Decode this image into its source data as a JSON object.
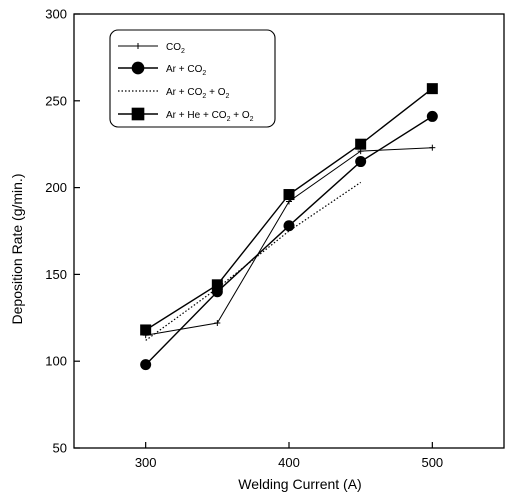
{
  "chart_data": {
    "type": "line",
    "title": "",
    "xlabel": "Welding Current (A)",
    "ylabel": "Deposition Rate  (g/min.)",
    "xlim": [
      250,
      550
    ],
    "ylim": [
      50,
      300
    ],
    "xticks": [
      300,
      400,
      500
    ],
    "yticks": [
      50,
      100,
      150,
      200,
      250,
      300
    ],
    "grid": false,
    "legend_position": "top-left",
    "series": [
      {
        "name": "CO2",
        "legend_parts": [
          {
            "text": "CO",
            "sub": false
          },
          {
            "text": "2",
            "sub": true
          }
        ],
        "marker": "plus",
        "dash": "solid",
        "points": [
          {
            "x": 300,
            "y": 115
          },
          {
            "x": 350,
            "y": 122
          },
          {
            "x": 400,
            "y": 192
          },
          {
            "x": 450,
            "y": 221
          },
          {
            "x": 500,
            "y": 223
          }
        ]
      },
      {
        "name": "Ar + CO2",
        "legend_parts": [
          {
            "text": "Ar + CO",
            "sub": false
          },
          {
            "text": "2",
            "sub": true
          }
        ],
        "marker": "circle",
        "dash": "solid",
        "points": [
          {
            "x": 300,
            "y": 98
          },
          {
            "x": 350,
            "y": 140
          },
          {
            "x": 400,
            "y": 178
          },
          {
            "x": 450,
            "y": 215
          },
          {
            "x": 500,
            "y": 241
          }
        ]
      },
      {
        "name": "Ar + CO2 + O2",
        "legend_parts": [
          {
            "text": "Ar + CO",
            "sub": false
          },
          {
            "text": "2",
            "sub": true
          },
          {
            "text": " + O",
            "sub": false
          },
          {
            "text": "2",
            "sub": true
          }
        ],
        "marker": "none",
        "dash": "dotted",
        "points": [
          {
            "x": 300,
            "y": 112
          },
          {
            "x": 350,
            "y": 142
          },
          {
            "x": 400,
            "y": 175
          },
          {
            "x": 450,
            "y": 203
          }
        ]
      },
      {
        "name": "Ar + He + CO2 + O2",
        "legend_parts": [
          {
            "text": "Ar + He + CO",
            "sub": false
          },
          {
            "text": "2",
            "sub": true
          },
          {
            "text": " + O",
            "sub": false
          },
          {
            "text": "2",
            "sub": true
          }
        ],
        "marker": "square",
        "dash": "solid",
        "points": [
          {
            "x": 300,
            "y": 118
          },
          {
            "x": 350,
            "y": 144
          },
          {
            "x": 400,
            "y": 196
          },
          {
            "x": 450,
            "y": 225
          },
          {
            "x": 500,
            "y": 257
          }
        ]
      }
    ],
    "colors": {
      "ink": "#000000",
      "background": "#ffffff"
    }
  }
}
